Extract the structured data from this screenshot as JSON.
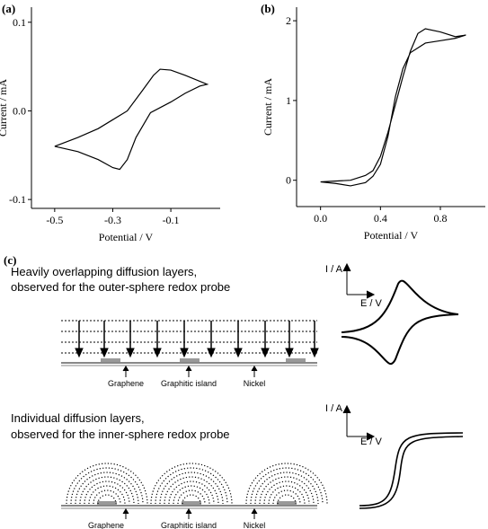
{
  "chart_data": [
    {
      "type": "line",
      "panel_label": "(a)",
      "x_label": "Potential / V",
      "y_label": "Current / mA",
      "xlim": [
        -0.58,
        0.07
      ],
      "ylim": [
        -0.11,
        0.117
      ],
      "xticks": [
        -0.5,
        -0.3,
        -0.1
      ],
      "yticks": [
        -0.1,
        {
          "value": 0,
          "label": "0.0"
        },
        0.1
      ],
      "color": "#000000",
      "x": [
        -0.5,
        -0.42,
        -0.35,
        -0.3,
        -0.25,
        -0.2,
        -0.16,
        -0.137,
        -0.1,
        -0.05,
        0.025,
        0.0,
        -0.05,
        -0.1,
        -0.17,
        -0.22,
        -0.25,
        -0.276,
        -0.3,
        -0.35,
        -0.42,
        -0.5
      ],
      "values": [
        -0.04,
        -0.03,
        -0.02,
        -0.01,
        0.0,
        0.022,
        0.04,
        0.047,
        0.046,
        0.04,
        0.03,
        0.028,
        0.02,
        0.01,
        -0.002,
        -0.03,
        -0.055,
        -0.066,
        -0.064,
        -0.055,
        -0.046,
        -0.04
      ]
    },
    {
      "type": "line",
      "panel_label": "(b)",
      "x_label": "Potential / V",
      "y_label": "Current / mA",
      "xlim": [
        -0.16,
        1.1
      ],
      "ylim": [
        -0.33,
        2.17
      ],
      "xticks": [
        {
          "value": 0,
          "label": "0.0"
        },
        0.4,
        0.8
      ],
      "yticks": [
        0,
        1,
        2
      ],
      "color": "#000000",
      "x": [
        0.0,
        0.2,
        0.3,
        0.35,
        0.4,
        0.45,
        0.5,
        0.55,
        0.6,
        0.65,
        0.7,
        0.8,
        0.9,
        0.97,
        0.9,
        0.8,
        0.7,
        0.6,
        0.55,
        0.5,
        0.45,
        0.4,
        0.35,
        0.3,
        0.2,
        0.1,
        0.0
      ],
      "values": [
        -0.02,
        0.0,
        0.06,
        0.12,
        0.3,
        0.6,
        0.95,
        1.3,
        1.62,
        1.84,
        1.9,
        1.86,
        1.8,
        1.82,
        1.78,
        1.75,
        1.72,
        1.6,
        1.4,
        1.05,
        0.55,
        0.2,
        0.05,
        -0.03,
        -0.07,
        -0.04,
        -0.02
      ]
    }
  ],
  "diagram": {
    "panel_label": "(c)",
    "top": {
      "title_lines": [
        "Heavily overlapping diffusion layers,",
        "observed for the outer-sphere redox probe"
      ],
      "labels": [
        "Graphene",
        "Graphitic island",
        "Nickel"
      ],
      "axis_y": "I / A",
      "axis_x": "E / V"
    },
    "bottom": {
      "title_lines": [
        "Individual diffusion layers,",
        "observed for the inner-sphere redox probe"
      ],
      "labels": [
        "Graphene",
        "Graphitic island",
        "Nickel"
      ],
      "axis_y": "I / A",
      "axis_x": "E / V"
    }
  }
}
